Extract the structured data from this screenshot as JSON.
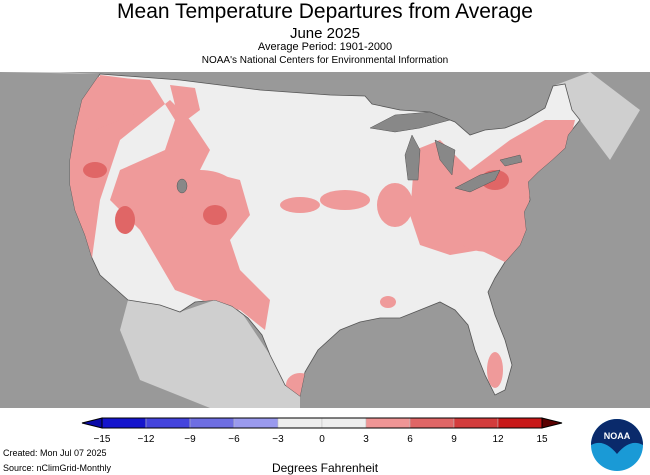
{
  "header": {
    "title": "Mean Temperature Departures from Average",
    "subtitle": "June 2025",
    "period": "Average Period: 1901-2000",
    "organization": "NOAA's National Centers for Environmental Information"
  },
  "map": {
    "region": "Contiguous United States",
    "background_color": "#999999",
    "land_color": "#eeeeee",
    "lake_color": "#888888",
    "above_average_color": "#ef9a9a",
    "warmer_color": "#e06666"
  },
  "legend": {
    "ticks": [
      "−15",
      "−12",
      "−9",
      "−6",
      "−3",
      "0",
      "3",
      "6",
      "9",
      "12",
      "15"
    ],
    "bin_colors": [
      "#0a0aa8",
      "#1515cc",
      "#4444dd",
      "#6e6ee2",
      "#9a9aee",
      "#eeeeee",
      "#eeeeee",
      "#ef9595",
      "#e06666",
      "#d33c3c",
      "#c81818",
      "#5a0000"
    ],
    "units": "Degrees Fahrenheit"
  },
  "footer": {
    "created": "Created: Mon Jul 07 2025",
    "source": "Source: nClimGrid-Monthly",
    "logo_text": "NOAA"
  }
}
